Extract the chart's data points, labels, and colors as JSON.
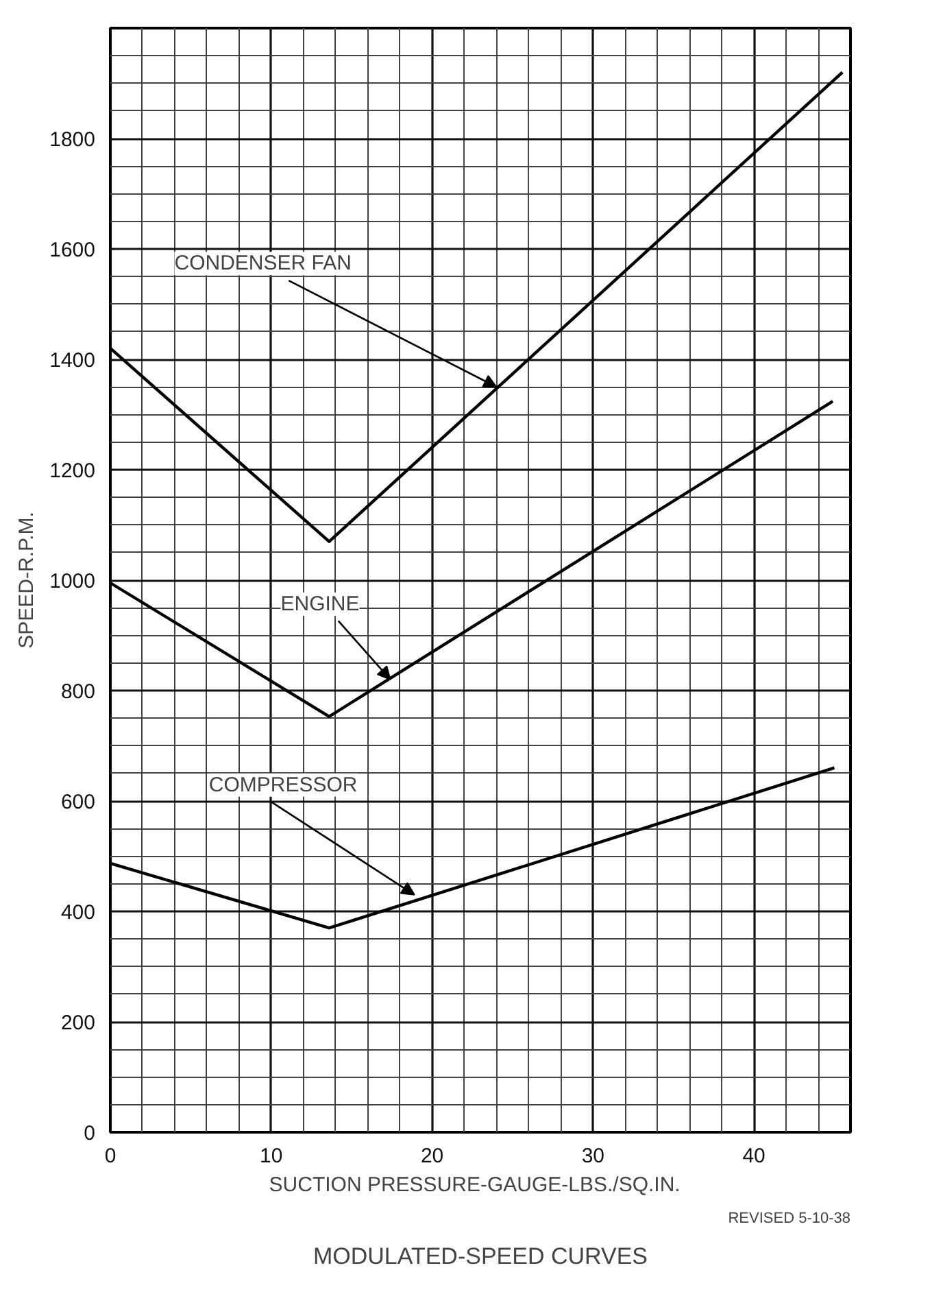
{
  "chart_data": {
    "type": "line",
    "title": "MODULATED-SPEED CURVES",
    "xlabel": "SUCTION   PRESSURE-GAUGE-LBS./SQ.IN.",
    "ylabel": "SPEED-R.P.M.",
    "xlim": [
      0,
      46
    ],
    "xticks": [
      0,
      10,
      20,
      30,
      40
    ],
    "ylim": [
      0,
      2000
    ],
    "yticks": [
      0,
      200,
      400,
      600,
      800,
      1000,
      1200,
      1400,
      1600,
      1800,
      {
        "value": 2000,
        "label": null
      }
    ],
    "grid": true,
    "marker": "none",
    "line_style": "solid",
    "series": [
      {
        "color": "#000000",
        "x": [
          0,
          13.6,
          45.5
        ],
        "values": [
          1420,
          1070,
          1920
        ]
      },
      {
        "color": "#000000",
        "x": [
          0,
          13.6,
          44.9
        ],
        "values": [
          995,
          753,
          1324
        ]
      },
      {
        "color": "#000000",
        "x": [
          0,
          13.6,
          45
        ],
        "values": [
          487,
          370,
          660
        ]
      }
    ],
    "annotations": [
      {
        "text": "CONDENSER FAN",
        "x": 24.0,
        "y": 1350
      },
      {
        "text": "ENGINE",
        "x": 17.4,
        "y": 820
      },
      {
        "text": "COMPRESSOR",
        "x": 18.9,
        "y": 430
      },
      "REVISED 5-10-38"
    ]
  }
}
